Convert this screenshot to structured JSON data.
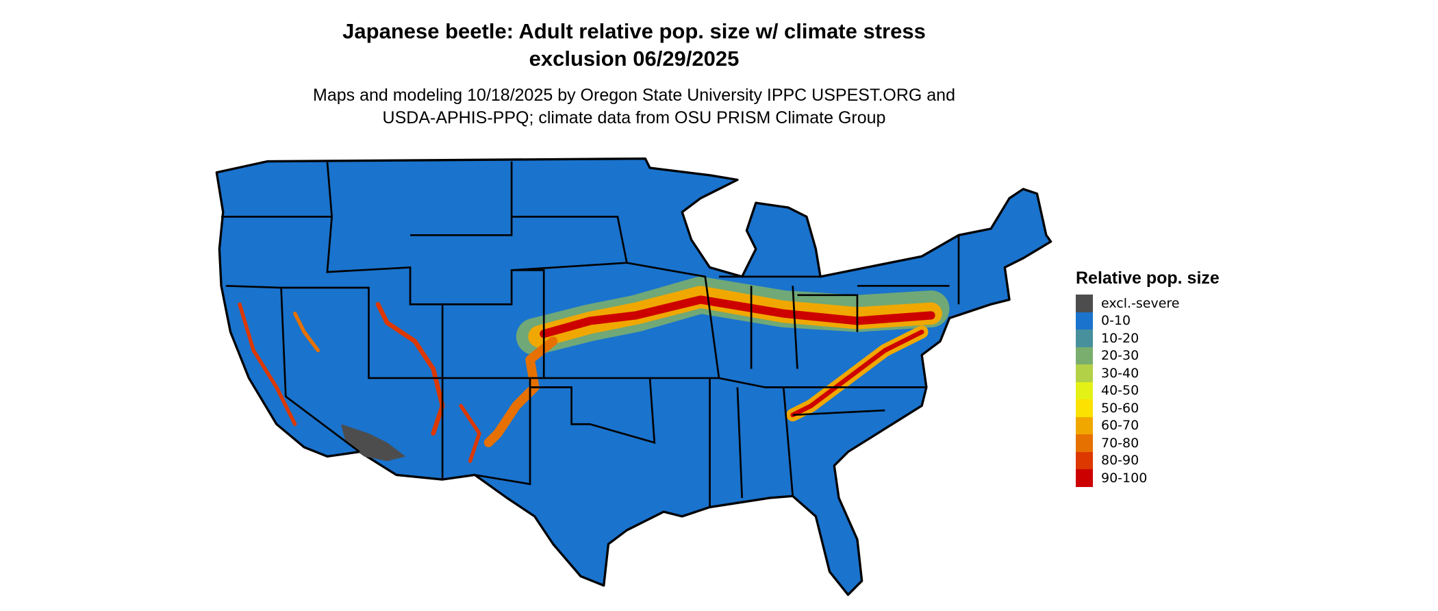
{
  "title_line1": "Japanese beetle: Adult relative pop. size w/ climate stress",
  "title_line2": "exclusion 06/29/2025",
  "subtitle_line1": "Maps and modeling 10/18/2025 by Oregon State University IPPC USPEST.ORG and",
  "subtitle_line2": "USDA-APHIS-PPQ; climate data from OSU PRISM Climate Group",
  "legend": {
    "title": "Relative pop. size",
    "items": [
      {
        "label": "excl.-severe",
        "color": "#4d4d4d"
      },
      {
        "label": "0-10",
        "color": "#1a73cd"
      },
      {
        "label": "10-20",
        "color": "#47909c"
      },
      {
        "label": "20-30",
        "color": "#7aae6e"
      },
      {
        "label": "30-40",
        "color": "#b2d146"
      },
      {
        "label": "40-50",
        "color": "#e4f117"
      },
      {
        "label": "50-60",
        "color": "#fbe200"
      },
      {
        "label": "60-70",
        "color": "#f0a800"
      },
      {
        "label": "70-80",
        "color": "#e67100"
      },
      {
        "label": "80-90",
        "color": "#dc3800"
      },
      {
        "label": "90-100",
        "color": "#cd0000"
      }
    ]
  }
}
